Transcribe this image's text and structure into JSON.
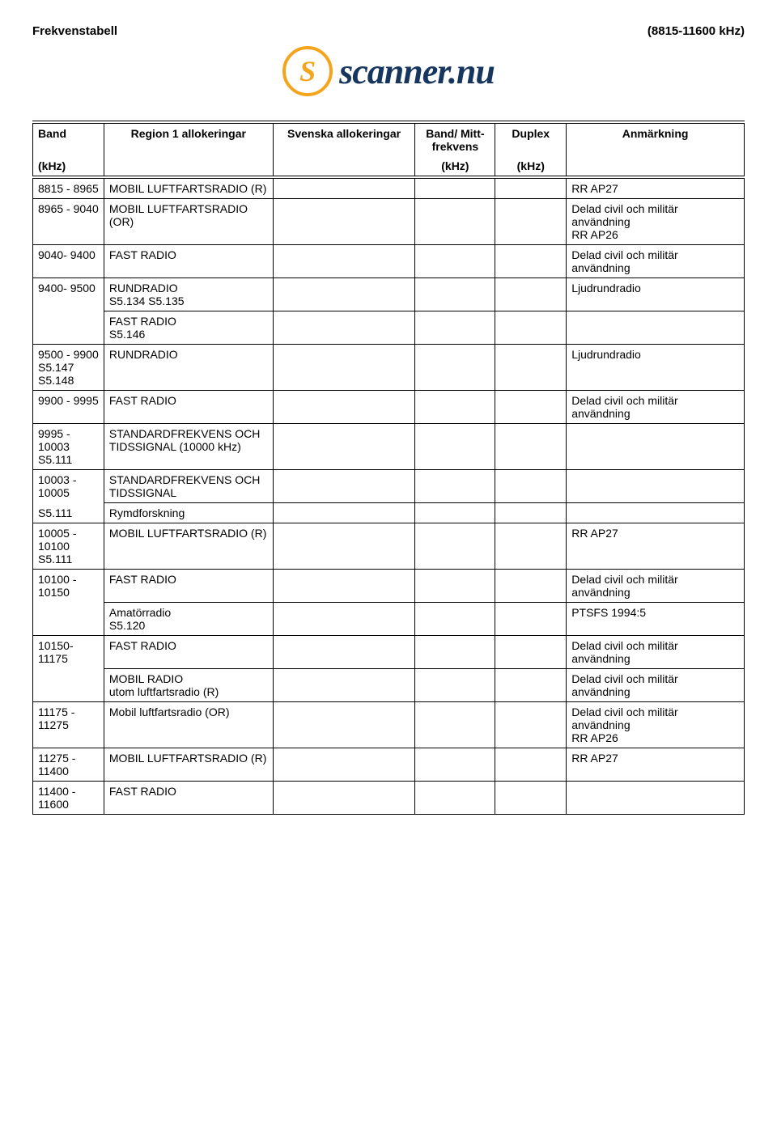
{
  "header": {
    "left": "Frekvenstabell",
    "right": "(8815-11600 kHz)"
  },
  "logo": {
    "s": "S",
    "text": "scanner.nu",
    "s_color": "#f5a51d",
    "text_color": "#16355f"
  },
  "columns": {
    "band": "Band",
    "band_unit": "(kHz)",
    "region1": "Region 1 allokeringar",
    "svenska": "Svenska allokeringar",
    "mitt": "Band/ Mitt-frekvens",
    "mitt_unit": "(kHz)",
    "duplex": "Duplex",
    "duplex_unit": "(kHz)",
    "anmarkning": "Anmärkning"
  },
  "rows": {
    "r0": {
      "band": "8815 - 8965",
      "r1": "MOBIL LUFTFARTSRADIO (R)",
      "anm": "RR AP27"
    },
    "r1": {
      "band": "8965 - 9040",
      "r1": "MOBIL LUFTFARTSRADIO (OR)",
      "anm": "Delad civil och militär användning\nRR AP26"
    },
    "r2": {
      "band": "9040- 9400",
      "r1": "FAST RADIO",
      "anm": "Delad civil och militär användning"
    },
    "r3": {
      "band": "9400- 9500",
      "r1": "RUNDRADIO\nS5.134 S5.135",
      "anm": "Ljudrundradio"
    },
    "r3b": {
      "r1": "FAST RADIO\nS5.146"
    },
    "r4": {
      "band": "9500 - 9900\nS5.147\nS5.148",
      "r1": "RUNDRADIO",
      "anm": "Ljudrundradio"
    },
    "r5": {
      "band": "9900 - 9995",
      "r1": "FAST RADIO",
      "anm": "Delad civil och militär användning"
    },
    "r6": {
      "band": "9995 - 10003\nS5.111",
      "r1": "STANDARDFREKVENS OCH TIDSSIGNAL (10000 kHz)"
    },
    "r7": {
      "band": "10003 - 10005",
      "r1": "STANDARDFREKVENS OCH TIDSSIGNAL"
    },
    "r7b": {
      "band": "S5.111",
      "r1": "Rymdforskning"
    },
    "r8": {
      "band": "10005 - 10100\nS5.111",
      "r1": "MOBIL LUFTFARTSRADIO (R)",
      "anm": "RR AP27"
    },
    "r9": {
      "band": "10100 - 10150",
      "r1": "FAST RADIO",
      "anm": "Delad civil och militär användning"
    },
    "r9b": {
      "r1": "Amatörradio\nS5.120",
      "anm": "PTSFS 1994:5"
    },
    "r10": {
      "band": "10150- 11175",
      "r1": "FAST RADIO",
      "anm": "Delad civil och militär användning"
    },
    "r10b": {
      "r1": "MOBIL RADIO\nutom luftfartsradio (R)",
      "anm": "Delad civil och militär användning"
    },
    "r11": {
      "band": "11175 - 11275",
      "r1": "Mobil luftfartsradio (OR)",
      "anm": "Delad civil och militär användning\nRR AP26"
    },
    "r12": {
      "band": "11275 - 11400",
      "r1": "MOBIL LUFTFARTSRADIO (R)",
      "anm": "RR AP27"
    },
    "r13": {
      "band": "11400 - 11600",
      "r1": "FAST RADIO"
    }
  }
}
